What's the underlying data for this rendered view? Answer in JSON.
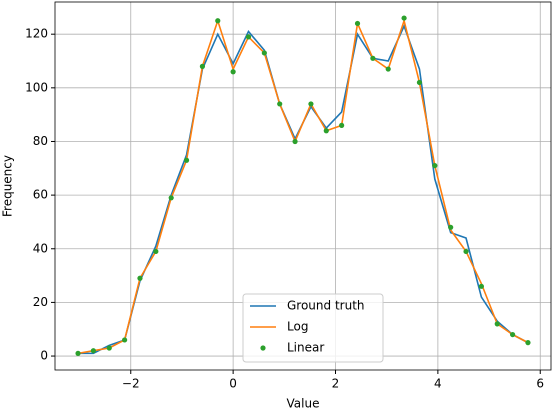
{
  "chart_data": {
    "type": "line",
    "x_label": "Value",
    "y_label": "Frequency",
    "x": [
      -3.03,
      -2.73,
      -2.42,
      -2.12,
      -1.82,
      -1.51,
      -1.21,
      -0.91,
      -0.6,
      -0.3,
      0.0,
      0.3,
      0.61,
      0.91,
      1.21,
      1.52,
      1.82,
      2.12,
      2.43,
      2.73,
      3.03,
      3.34,
      3.64,
      3.94,
      4.25,
      4.55,
      4.85,
      5.16,
      5.46,
      5.76
    ],
    "series": [
      {
        "name": "Ground truth",
        "color": "#1f77b4",
        "style": "line",
        "values": [
          1,
          1,
          4,
          6,
          28,
          41,
          60,
          75,
          107,
          120,
          109,
          121,
          114,
          94,
          81,
          93,
          85,
          91,
          120,
          111,
          110,
          123,
          107,
          66,
          46,
          44,
          22,
          13,
          8,
          5
        ]
      },
      {
        "name": "Log",
        "color": "#ff7f0e",
        "style": "line",
        "values": [
          1,
          2,
          3,
          6,
          29,
          39,
          59,
          73,
          108,
          125,
          107,
          119,
          113,
          94,
          80,
          94,
          84,
          86,
          124,
          111,
          107,
          125,
          102,
          71,
          47,
          39,
          27,
          12,
          8,
          5
        ]
      },
      {
        "name": "Linear",
        "color": "#2ca02c",
        "style": "points",
        "values": [
          1,
          2,
          3,
          6,
          29,
          39,
          59,
          73,
          108,
          125,
          106,
          119,
          113,
          94,
          80,
          94,
          84,
          86,
          124,
          111,
          107,
          126,
          102,
          71,
          48,
          39,
          26,
          12,
          8,
          5
        ]
      }
    ],
    "xlim": [
      -3.48,
      6.21
    ],
    "ylim": [
      -5.2,
      132
    ],
    "xticks": [
      {
        "value": -2,
        "label": "−2"
      },
      0,
      2,
      4,
      6
    ],
    "yticks": [
      0,
      20,
      40,
      60,
      80,
      100,
      120
    ],
    "grid": true,
    "legend_position": "lower center"
  }
}
